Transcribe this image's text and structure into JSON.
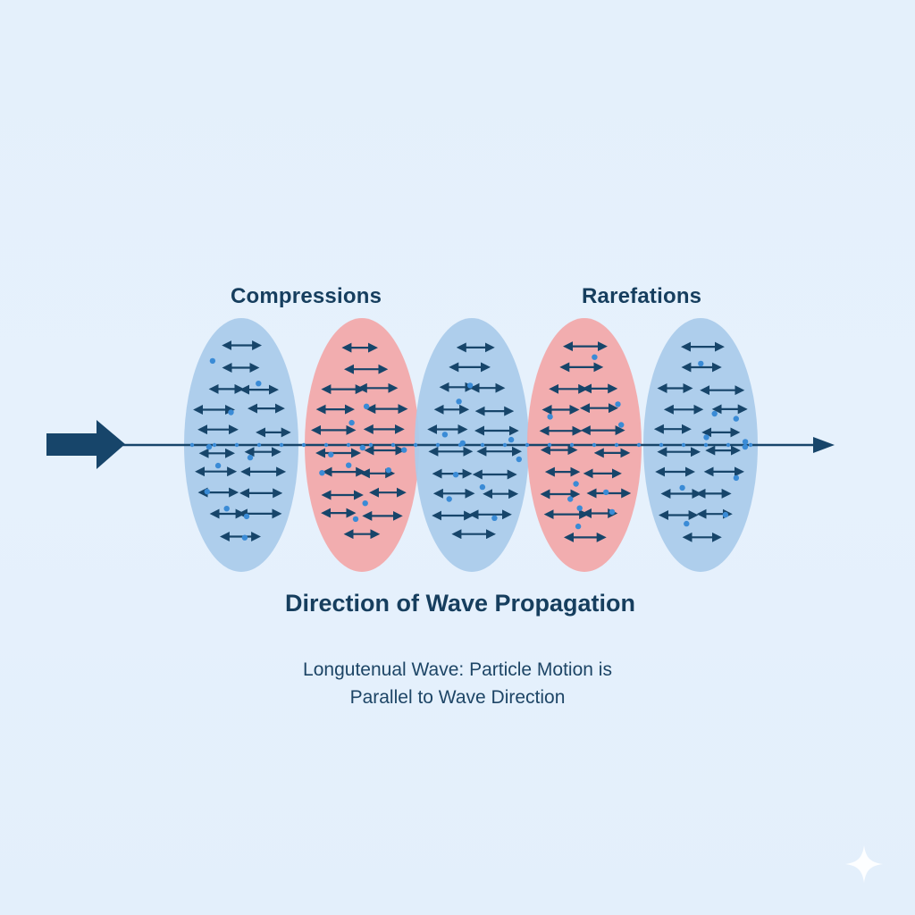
{
  "labels": {
    "compressions": "Compressions",
    "rarefactions": "Rarefations",
    "direction": "Direction of Wave Propagation",
    "caption_line1": "Longutenual Wave: Particle Motion is",
    "caption_line2": "Parallel to Wave Direction"
  },
  "regions": [
    {
      "kind": "compression",
      "color": "#abcbeb"
    },
    {
      "kind": "rarefaction",
      "color": "#f2a9ab"
    },
    {
      "kind": "compression",
      "color": "#abcbeb"
    },
    {
      "kind": "rarefaction",
      "color": "#f2a9ab"
    },
    {
      "kind": "compression",
      "color": "#abcbeb"
    }
  ],
  "colors": {
    "arrow": "#17456a",
    "particle": "#3a8bd6",
    "background": "#e4f0fb"
  },
  "icons": {
    "direction_arrow": "thick-right-arrow-icon",
    "sparkle": "sparkle-icon"
  }
}
